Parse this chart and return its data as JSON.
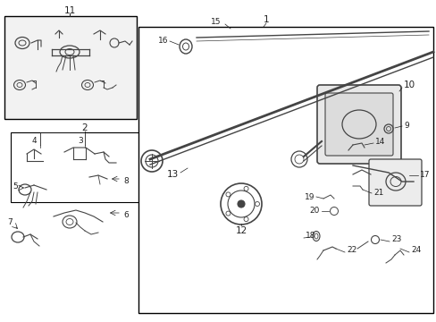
{
  "bg": "white",
  "lc": "#222222",
  "pc": "#444444",
  "fs": 6.5,
  "figsize": [
    4.89,
    3.6
  ],
  "dpi": 100
}
